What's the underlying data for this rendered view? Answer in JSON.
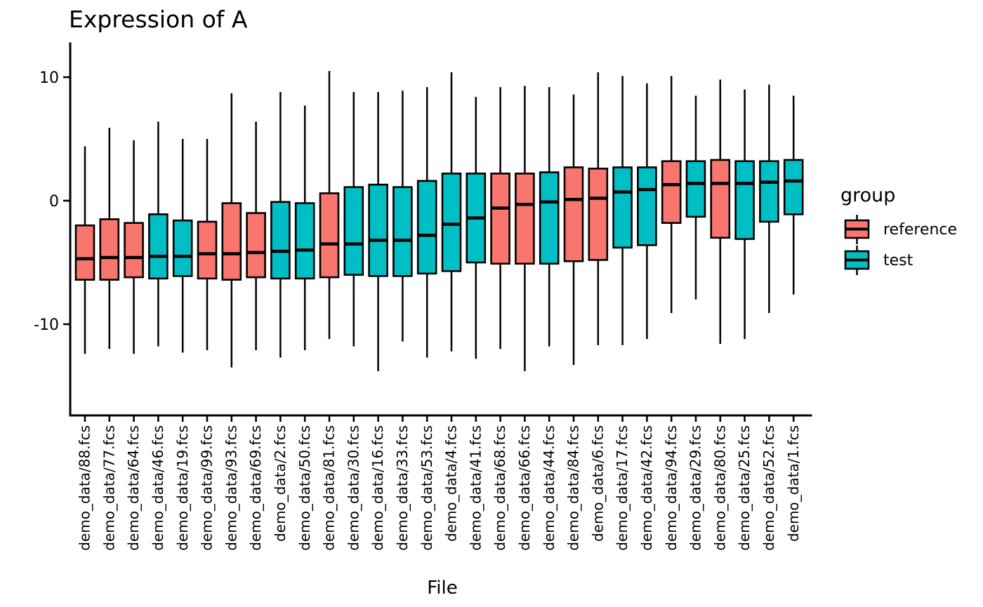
{
  "title": "Expression of A",
  "x_axis": {
    "label": "File"
  },
  "y_axis": {
    "label": "",
    "ticks": [
      10,
      0,
      -10
    ]
  },
  "legend": {
    "title": "group",
    "items": [
      {
        "label": "reference",
        "color": "#F8766D"
      },
      {
        "label": "test",
        "color": "#00BFC4"
      }
    ]
  },
  "chart_data": {
    "type": "boxplot",
    "title": "Expression of A",
    "xlabel": "File",
    "ylabel": "",
    "ylim": [
      -15.5,
      11.5
    ],
    "y_ticks": [
      10,
      0,
      -10
    ],
    "grid": false,
    "legend_position": "right",
    "group_colors": {
      "reference": "#F8766D",
      "test": "#00BFC4"
    },
    "boxes": [
      {
        "file": "demo_data/88.fcs",
        "group": "reference",
        "low": -12.4,
        "q1": -6.4,
        "median": -4.7,
        "q3": -2.0,
        "high": 4.4
      },
      {
        "file": "demo_data/77.fcs",
        "group": "reference",
        "low": -12.0,
        "q1": -6.4,
        "median": -4.6,
        "q3": -1.5,
        "high": 5.9
      },
      {
        "file": "demo_data/64.fcs",
        "group": "reference",
        "low": -12.4,
        "q1": -6.2,
        "median": -4.6,
        "q3": -1.8,
        "high": 4.9
      },
      {
        "file": "demo_data/46.fcs",
        "group": "test",
        "low": -11.8,
        "q1": -6.3,
        "median": -4.5,
        "q3": -1.1,
        "high": 6.4
      },
      {
        "file": "demo_data/19.fcs",
        "group": "test",
        "low": -12.3,
        "q1": -6.1,
        "median": -4.5,
        "q3": -1.6,
        "high": 5.0
      },
      {
        "file": "demo_data/99.fcs",
        "group": "reference",
        "low": -12.1,
        "q1": -6.3,
        "median": -4.3,
        "q3": -1.7,
        "high": 5.0
      },
      {
        "file": "demo_data/93.fcs",
        "group": "reference",
        "low": -13.5,
        "q1": -6.4,
        "median": -4.3,
        "q3": -0.2,
        "high": 8.7
      },
      {
        "file": "demo_data/69.fcs",
        "group": "reference",
        "low": -12.1,
        "q1": -6.2,
        "median": -4.2,
        "q3": -1.0,
        "high": 6.4
      },
      {
        "file": "demo_data/2.fcs",
        "group": "test",
        "low": -12.7,
        "q1": -6.3,
        "median": -4.1,
        "q3": -0.1,
        "high": 8.8
      },
      {
        "file": "demo_data/50.fcs",
        "group": "test",
        "low": -12.1,
        "q1": -6.3,
        "median": -4.0,
        "q3": -0.2,
        "high": 7.7
      },
      {
        "file": "demo_data/81.fcs",
        "group": "reference",
        "low": -11.2,
        "q1": -6.2,
        "median": -3.5,
        "q3": 0.6,
        "high": 10.5
      },
      {
        "file": "demo_data/30.fcs",
        "group": "test",
        "low": -11.8,
        "q1": -6.0,
        "median": -3.5,
        "q3": 1.1,
        "high": 8.8
      },
      {
        "file": "demo_data/16.fcs",
        "group": "test",
        "low": -13.8,
        "q1": -6.1,
        "median": -3.2,
        "q3": 1.3,
        "high": 8.8
      },
      {
        "file": "demo_data/33.fcs",
        "group": "test",
        "low": -11.4,
        "q1": -6.1,
        "median": -3.2,
        "q3": 1.1,
        "high": 8.9
      },
      {
        "file": "demo_data/53.fcs",
        "group": "test",
        "low": -12.7,
        "q1": -5.9,
        "median": -2.8,
        "q3": 1.6,
        "high": 9.2
      },
      {
        "file": "demo_data/4.fcs",
        "group": "test",
        "low": -12.2,
        "q1": -5.7,
        "median": -1.9,
        "q3": 2.2,
        "high": 10.4
      },
      {
        "file": "demo_data/41.fcs",
        "group": "test",
        "low": -12.8,
        "q1": -5.0,
        "median": -1.4,
        "q3": 2.2,
        "high": 8.4
      },
      {
        "file": "demo_data/68.fcs",
        "group": "reference",
        "low": -12.0,
        "q1": -5.1,
        "median": -0.6,
        "q3": 2.2,
        "high": 9.2
      },
      {
        "file": "demo_data/66.fcs",
        "group": "reference",
        "low": -13.8,
        "q1": -5.1,
        "median": -0.3,
        "q3": 2.2,
        "high": 9.3
      },
      {
        "file": "demo_data/44.fcs",
        "group": "test",
        "low": -11.8,
        "q1": -5.1,
        "median": -0.1,
        "q3": 2.3,
        "high": 9.2
      },
      {
        "file": "demo_data/84.fcs",
        "group": "reference",
        "low": -13.3,
        "q1": -4.9,
        "median": 0.1,
        "q3": 2.7,
        "high": 8.6
      },
      {
        "file": "demo_data/6.fcs",
        "group": "reference",
        "low": -11.7,
        "q1": -4.8,
        "median": 0.2,
        "q3": 2.6,
        "high": 10.4
      },
      {
        "file": "demo_data/17.fcs",
        "group": "test",
        "low": -11.7,
        "q1": -3.8,
        "median": 0.7,
        "q3": 2.7,
        "high": 10.1
      },
      {
        "file": "demo_data/42.fcs",
        "group": "test",
        "low": -11.2,
        "q1": -3.6,
        "median": 0.9,
        "q3": 2.7,
        "high": 9.5
      },
      {
        "file": "demo_data/94.fcs",
        "group": "reference",
        "low": -9.1,
        "q1": -1.8,
        "median": 1.3,
        "q3": 3.2,
        "high": 10.1
      },
      {
        "file": "demo_data/29.fcs",
        "group": "test",
        "low": -8.0,
        "q1": -1.3,
        "median": 1.4,
        "q3": 3.2,
        "high": 8.5
      },
      {
        "file": "demo_data/80.fcs",
        "group": "reference",
        "low": -11.6,
        "q1": -3.0,
        "median": 1.4,
        "q3": 3.3,
        "high": 9.8
      },
      {
        "file": "demo_data/25.fcs",
        "group": "test",
        "low": -11.2,
        "q1": -3.1,
        "median": 1.4,
        "q3": 3.2,
        "high": 9.0
      },
      {
        "file": "demo_data/52.fcs",
        "group": "test",
        "low": -9.1,
        "q1": -1.7,
        "median": 1.5,
        "q3": 3.2,
        "high": 9.4
      },
      {
        "file": "demo_data/1.fcs",
        "group": "test",
        "low": -7.6,
        "q1": -1.1,
        "median": 1.6,
        "q3": 3.3,
        "high": 8.5
      }
    ]
  }
}
